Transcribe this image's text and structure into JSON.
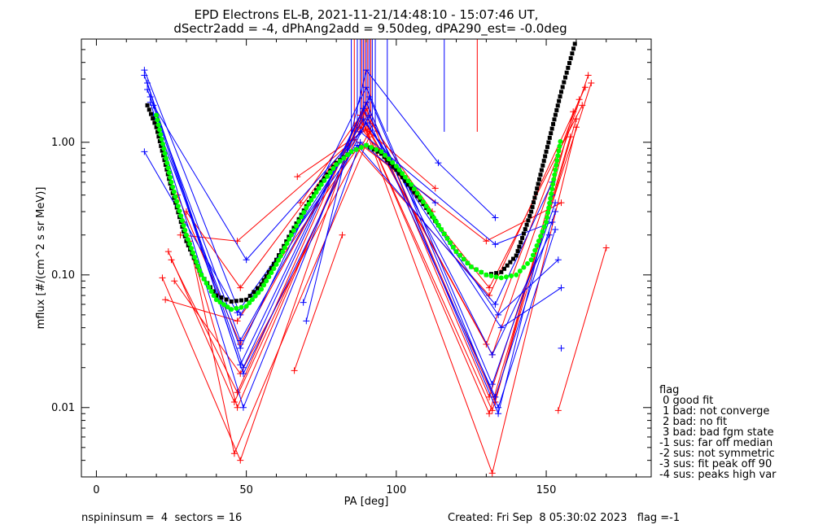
{
  "chart_data": {
    "type": "line",
    "title": "EPD Electrons EL-B, 2021-11-21/14:48:10 - 15:07:46 UT,",
    "subtitle": "dSectr2add = -4, dPhAng2add = 9.50deg, dPA290_est=  -0.0deg",
    "xlabel": "PA [deg]",
    "ylabel": "mflux [#/(cm^2 s sr MeV)]",
    "xlim": [
      -5,
      185
    ],
    "ylim": [
      0.003,
      6.0
    ],
    "yscale": "log",
    "xticks": [
      0,
      50,
      100,
      150
    ],
    "xtick_labels": [
      "0",
      "50",
      "100",
      "150"
    ],
    "yticks": [
      0.01,
      0.1,
      1.0
    ],
    "ytick_labels": [
      "0.01",
      "0.10",
      "1.00"
    ],
    "grid": false,
    "legend_position": "right, outside",
    "colors": {
      "red": "#ff0000",
      "blue": "#0000ff",
      "black": "#000000",
      "green": "#00ff00"
    },
    "series": [
      {
        "color": "red",
        "style": "line+plus",
        "x": [
          22,
          48,
          88,
          132,
          160
        ],
        "y": [
          0.095,
          0.004,
          1.6,
          0.0032,
          1.3
        ]
      },
      {
        "color": "red",
        "style": "line+plus",
        "x": [
          24,
          46,
          89,
          131,
          158
        ],
        "y": [
          0.15,
          0.011,
          1.4,
          0.009,
          1.1
        ]
      },
      {
        "color": "red",
        "style": "line+plus",
        "x": [
          25,
          47,
          90,
          133,
          159
        ],
        "y": [
          0.13,
          0.013,
          2.0,
          0.011,
          1.7
        ]
      },
      {
        "color": "red",
        "style": "line+plus",
        "x": [
          26,
          48,
          91,
          130,
          161
        ],
        "y": [
          0.09,
          0.018,
          1.2,
          0.03,
          2.1
        ]
      },
      {
        "color": "red",
        "style": "line+plus",
        "x": [
          23,
          47,
          87,
          131,
          163
        ],
        "y": [
          0.065,
          0.045,
          0.9,
          0.07,
          2.6
        ]
      },
      {
        "color": "red",
        "style": "line+plus",
        "x": [
          28,
          47,
          86,
          130,
          155
        ],
        "y": [
          0.2,
          0.18,
          1.05,
          0.18,
          0.35
        ]
      },
      {
        "color": "red",
        "style": "line+plus",
        "x": [
          30,
          48,
          88,
          131,
          162
        ],
        "y": [
          0.3,
          0.08,
          1.3,
          0.08,
          1.9
        ]
      },
      {
        "color": "red",
        "style": "line+plus",
        "x": [
          27,
          48,
          89,
          132,
          164
        ],
        "y": [
          0.4,
          0.03,
          1.5,
          0.025,
          3.2
        ]
      },
      {
        "color": "red",
        "style": "line+plus",
        "x": [
          29,
          47,
          90,
          131,
          165
        ],
        "y": [
          0.25,
          0.01,
          1.8,
          0.012,
          2.8
        ]
      },
      {
        "color": "red",
        "style": "line+plus",
        "x": [
          31,
          46,
          91,
          132,
          160
        ],
        "y": [
          0.18,
          0.0045,
          1.1,
          0.0095,
          1.5
        ]
      },
      {
        "color": "red",
        "style": "line+plus",
        "x": [
          66,
          82
        ],
        "y": [
          0.019,
          0.2
        ]
      },
      {
        "color": "red",
        "style": "line+plus",
        "x": [
          154,
          170
        ],
        "y": [
          0.0095,
          0.16
        ]
      },
      {
        "color": "red",
        "style": "line+plus",
        "x": [
          67,
          90,
          113
        ],
        "y": [
          0.55,
          1.25,
          0.45
        ]
      },
      {
        "color": "red",
        "style": "line+plus",
        "x": [
          68,
          89,
          112
        ],
        "y": [
          0.35,
          1.7,
          0.3
        ]
      },
      {
        "color": "blue",
        "style": "line+plus",
        "x": [
          16,
          49,
          90,
          134,
          152
        ],
        "y": [
          3.2,
          0.02,
          2.0,
          0.009,
          0.4
        ]
      },
      {
        "color": "blue",
        "style": "line+plus",
        "x": [
          17,
          48,
          89,
          133,
          153
        ],
        "y": [
          2.8,
          0.021,
          1.8,
          0.012,
          0.3
        ]
      },
      {
        "color": "blue",
        "style": "line+plus",
        "x": [
          18,
          49,
          91,
          132,
          151
        ],
        "y": [
          2.2,
          0.018,
          1.6,
          0.025,
          0.2
        ]
      },
      {
        "color": "blue",
        "style": "line+plus",
        "x": [
          16,
          48,
          90,
          134,
          154
        ],
        "y": [
          3.5,
          0.05,
          1.4,
          0.05,
          0.13
        ]
      },
      {
        "color": "blue",
        "style": "line+plus",
        "x": [
          19,
          50,
          88,
          133,
          152
        ],
        "y": [
          1.9,
          0.13,
          1.2,
          0.17,
          0.25
        ]
      },
      {
        "color": "blue",
        "style": "line+plus",
        "x": [
          17,
          48,
          89,
          135,
          155
        ],
        "y": [
          2.5,
          0.032,
          1.5,
          0.04,
          0.08
        ]
      },
      {
        "color": "blue",
        "style": "line+plus",
        "x": [
          18,
          49,
          91,
          134,
          153
        ],
        "y": [
          2.0,
          0.01,
          2.2,
          0.01,
          0.22
        ]
      },
      {
        "color": "blue",
        "style": "line+plus",
        "x": [
          16,
          47,
          87,
          133,
          152
        ],
        "y": [
          0.85,
          0.052,
          0.95,
          0.06,
          0.5
        ]
      },
      {
        "color": "blue",
        "style": "line+plus",
        "x": [
          19,
          48,
          90,
          132,
          153
        ],
        "y": [
          1.6,
          0.028,
          2.6,
          0.015,
          0.35
        ]
      },
      {
        "color": "blue",
        "style": "line+plus",
        "x": [
          70,
          90,
          114,
          133
        ],
        "y": [
          0.045,
          3.5,
          0.7,
          0.27
        ]
      },
      {
        "color": "blue",
        "style": "line+plus",
        "x": [
          69,
          88,
          113
        ],
        "y": [
          0.062,
          1.0,
          0.35
        ]
      },
      {
        "color": "blue",
        "style": "plus",
        "x": [
          155
        ],
        "y": [
          0.028
        ]
      },
      {
        "color": "black",
        "style": "dotted-fit",
        "x": [
          17,
          20,
          25,
          30,
          35,
          40,
          45,
          50,
          55,
          60,
          65,
          70,
          75,
          80,
          85,
          90,
          95,
          100,
          105,
          110,
          115,
          120,
          125,
          130,
          135,
          140,
          145,
          150,
          155,
          160
        ],
        "y": [
          1.9,
          1.3,
          0.45,
          0.18,
          0.1,
          0.07,
          0.063,
          0.065,
          0.085,
          0.13,
          0.21,
          0.33,
          0.5,
          0.7,
          0.85,
          0.95,
          0.82,
          0.62,
          0.45,
          0.32,
          0.22,
          0.15,
          0.115,
          0.1,
          0.105,
          0.14,
          0.3,
          0.85,
          2.4,
          6.0
        ]
      },
      {
        "color": "green",
        "style": "dotted-fit",
        "x": [
          20,
          25,
          30,
          35,
          40,
          45,
          50,
          55,
          60,
          65,
          70,
          75,
          80,
          85,
          90,
          95,
          100,
          105,
          110,
          115,
          120,
          125,
          130,
          135,
          140,
          145,
          150,
          155
        ],
        "y": [
          1.6,
          0.5,
          0.2,
          0.1,
          0.065,
          0.055,
          0.058,
          0.078,
          0.12,
          0.2,
          0.32,
          0.48,
          0.68,
          0.85,
          0.95,
          0.85,
          0.66,
          0.48,
          0.33,
          0.22,
          0.15,
          0.115,
          0.1,
          0.095,
          0.1,
          0.13,
          0.25,
          1.1
        ]
      }
    ],
    "vertical_lines": [
      {
        "color": "blue",
        "x": 85,
        "y": [
          1.2,
          6.0
        ]
      },
      {
        "color": "blue",
        "x": 87,
        "y": [
          1.2,
          6.0
        ]
      },
      {
        "color": "blue",
        "x": 88,
        "y": [
          1.2,
          6.0
        ]
      },
      {
        "color": "blue",
        "x": 89,
        "y": [
          1.2,
          6.0
        ]
      },
      {
        "color": "blue",
        "x": 90,
        "y": [
          1.2,
          6.0
        ]
      },
      {
        "color": "blue",
        "x": 91,
        "y": [
          1.2,
          6.0
        ]
      },
      {
        "color": "blue",
        "x": 92,
        "y": [
          1.2,
          6.0
        ]
      },
      {
        "color": "blue",
        "x": 93,
        "y": [
          1.2,
          6.0
        ]
      },
      {
        "color": "blue",
        "x": 97,
        "y": [
          1.2,
          6.0
        ]
      },
      {
        "color": "blue",
        "x": 116,
        "y": [
          1.2,
          6.0
        ]
      },
      {
        "color": "red",
        "x": 86,
        "y": [
          1.2,
          6.0
        ]
      },
      {
        "color": "red",
        "x": 88.5,
        "y": [
          1.2,
          6.0
        ]
      },
      {
        "color": "red",
        "x": 89.5,
        "y": [
          1.2,
          6.0
        ]
      },
      {
        "color": "red",
        "x": 90.5,
        "y": [
          1.2,
          6.0
        ]
      },
      {
        "color": "red",
        "x": 91.5,
        "y": [
          1.2,
          6.0
        ]
      },
      {
        "color": "red",
        "x": 127,
        "y": [
          1.2,
          6.0
        ]
      }
    ]
  },
  "legend": {
    "title": "flag",
    "items": [
      " 0 good fit",
      " 1 bad: not converge",
      " 2 bad: no fit",
      " 3 bad: bad fgm state",
      "-1 sus: far off median",
      "-2 sus: not symmetric",
      "-3 sus: fit peak off 90",
      "-4 sus: peaks high var"
    ]
  },
  "footer": {
    "left": "nspininsum =  4  sectors = 16",
    "right": "Created: Fri Sep  8 05:30:02 2023   flag =-1"
  }
}
